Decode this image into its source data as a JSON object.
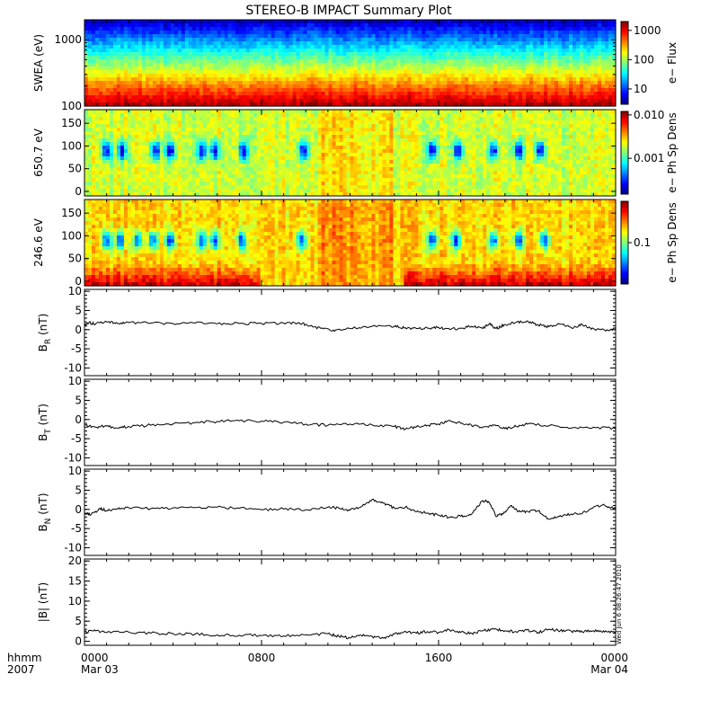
{
  "chart_data": {
    "type": "line",
    "title": "STEREO-B IMPACT Summary Plot",
    "x_labels": {
      "row1": [
        "0000",
        "0800",
        "1600",
        "0000"
      ],
      "row2": [
        "Mar 03",
        "Mar 04"
      ]
    },
    "x_prefix": {
      "row1": "hhmm",
      "row2": "2007"
    },
    "timestamp": "Wed Jun 6 08:26:47 2010",
    "panels": [
      {
        "id": "swea",
        "type": "heatmap",
        "ylabel": "SWEA (eV)",
        "yscale": "log",
        "ylim": [
          100,
          2000
        ],
        "yticks": [
          {
            "v": 100,
            "label": "100"
          },
          {
            "v": 1000,
            "label": "1000"
          }
        ],
        "colorbar": {
          "label": "e− Flux",
          "scale": "log",
          "range": [
            3,
            2000
          ],
          "ticks": [
            {
              "v": 10,
              "label": "10"
            },
            {
              "v": 100,
              "label": "100"
            },
            {
              "v": 1000,
              "label": "1000"
            }
          ]
        }
      },
      {
        "id": "pad650",
        "type": "heatmap",
        "ylabel": "650.7 eV",
        "ylim": [
          -10,
          180
        ],
        "yticks": [
          {
            "v": 0,
            "label": "0"
          },
          {
            "v": 50,
            "label": "50"
          },
          {
            "v": 100,
            "label": "100"
          },
          {
            "v": 150,
            "label": "150"
          }
        ],
        "colorbar": {
          "label": "e− Ph Sp Dens",
          "scale": "log",
          "range": [
            0.00015,
            0.012
          ],
          "ticks": [
            {
              "v": 0.001,
              "label": "0.001"
            },
            {
              "v": 0.01,
              "label": "0.010"
            }
          ]
        },
        "minima_hours": [
          1.0,
          1.7,
          3.2,
          3.9,
          5.3,
          5.9,
          7.2,
          9.9,
          15.7,
          16.9,
          18.5,
          19.6,
          20.6
        ]
      },
      {
        "id": "pad246",
        "type": "heatmap",
        "ylabel": "246.6 eV",
        "ylim": [
          -10,
          180
        ],
        "yticks": [
          {
            "v": 0,
            "label": "0"
          },
          {
            "v": 50,
            "label": "50"
          },
          {
            "v": 100,
            "label": "100"
          },
          {
            "v": 150,
            "label": "150"
          }
        ],
        "colorbar": {
          "label": "e− Ph Sp Dens",
          "scale": "log",
          "range": [
            0.02,
            0.5
          ],
          "ticks": [
            {
              "v": 0.1,
              "label": "0.1"
            }
          ]
        },
        "minima_hours": [
          1.0,
          1.6,
          2.4,
          3.1,
          3.9,
          5.3,
          5.9,
          7.1,
          9.8,
          15.7,
          16.8,
          18.5,
          19.6,
          20.8
        ]
      },
      {
        "id": "br",
        "type": "line",
        "ylabel": "B",
        "ylabel_sub": "R",
        "ylabel_unit": " (nT)",
        "ylim": [
          -12,
          10.5
        ],
        "yticks": [
          -10,
          -5,
          0,
          5,
          10
        ],
        "x": [
          0,
          0.2,
          0.5,
          1,
          1.5,
          2,
          3,
          4,
          5,
          6,
          7,
          8,
          9,
          9.7,
          10.2,
          10.8,
          11.3,
          12,
          13,
          14,
          14.5,
          15,
          15.5,
          16,
          16.5,
          17,
          17.5,
          18,
          18.3,
          18.6,
          19,
          19.5,
          20,
          20.5,
          21,
          21.5,
          22,
          22.5,
          23,
          23.5,
          24
        ],
        "y": [
          1.0,
          1.8,
          1.5,
          2.0,
          1.6,
          1.8,
          1.7,
          1.6,
          1.7,
          1.5,
          1.6,
          1.6,
          1.7,
          1.8,
          1.0,
          0.2,
          -0.4,
          0.3,
          0.9,
          0.8,
          0.5,
          0.3,
          0.4,
          0.6,
          0.1,
          0.4,
          0.9,
          0.3,
          1.6,
          0.3,
          1.3,
          1.9,
          2.3,
          1.2,
          0.8,
          1.4,
          0.5,
          1.3,
          0.2,
          -0.1,
          0.2
        ]
      },
      {
        "id": "bt",
        "type": "line",
        "ylabel": "B",
        "ylabel_sub": "T",
        "ylabel_unit": " (nT)",
        "ylim": [
          -12,
          10.5
        ],
        "yticks": [
          -10,
          -5,
          0,
          5,
          10
        ],
        "x": [
          0,
          0.5,
          1,
          1.5,
          2,
          3,
          4,
          5,
          6,
          7,
          8,
          9,
          10,
          11,
          12,
          13,
          14,
          14.5,
          15,
          15.5,
          16,
          16.5,
          17,
          17.5,
          18,
          18.5,
          19,
          19.5,
          20,
          21,
          22,
          23,
          24
        ],
        "y": [
          -1.5,
          -2.0,
          -1.7,
          -2.2,
          -1.8,
          -1.5,
          -1.2,
          -0.8,
          -0.5,
          -0.3,
          -0.4,
          -0.7,
          -1.2,
          -1.5,
          -1.2,
          -1.4,
          -1.8,
          -2.5,
          -1.9,
          -1.5,
          -1.2,
          -0.2,
          -1.0,
          -1.6,
          -2.0,
          -1.5,
          -2.4,
          -1.8,
          -1.2,
          -1.6,
          -2.2,
          -2.0,
          -2.4
        ]
      },
      {
        "id": "bn",
        "type": "line",
        "ylabel": "B",
        "ylabel_sub": "N",
        "ylabel_unit": " (nT)",
        "ylim": [
          -12,
          10.5
        ],
        "yticks": [
          -10,
          -5,
          0,
          5,
          10
        ],
        "x": [
          0,
          0.3,
          0.7,
          1,
          1.5,
          2,
          3,
          4,
          5,
          6,
          7,
          8,
          9,
          10,
          11,
          11.5,
          12,
          12.5,
          13,
          13.5,
          14,
          14.5,
          15,
          15.5,
          16,
          16.5,
          17,
          17.5,
          18,
          18.3,
          18.6,
          19,
          19.3,
          19.6,
          20,
          20.5,
          21,
          21.5,
          22,
          22.5,
          23,
          23.5,
          24
        ],
        "y": [
          -1.0,
          -1.3,
          0.2,
          -0.3,
          0.1,
          0.4,
          0.2,
          0.4,
          0.5,
          0.6,
          0.3,
          -0.1,
          0.1,
          -0.1,
          0.6,
          0.3,
          -0.2,
          0.7,
          2.6,
          1.6,
          0.4,
          0.6,
          -0.6,
          -1.0,
          -1.5,
          -2.0,
          -1.8,
          -1.2,
          2.3,
          1.8,
          -1.8,
          -0.8,
          1.0,
          -0.6,
          -0.5,
          -0.4,
          -2.6,
          -1.6,
          -1.2,
          -1.0,
          0.6,
          1.1,
          0.1
        ]
      },
      {
        "id": "bmag",
        "type": "line",
        "ylabel": "|B| (nT)",
        "ylim": [
          -1,
          20.5
        ],
        "yticks": [
          0,
          5,
          10,
          15,
          20
        ],
        "x": [
          0,
          0.5,
          1,
          2,
          3,
          4,
          5,
          6,
          7,
          8,
          9,
          10,
          11,
          11.5,
          12,
          12.5,
          13,
          13.5,
          14,
          14.5,
          15,
          15.5,
          16,
          16.5,
          17,
          17.5,
          18,
          18.5,
          19,
          19.5,
          20,
          20.5,
          21,
          21.5,
          22,
          22.5,
          23,
          23.5,
          24
        ],
        "y": [
          2.3,
          2.6,
          2.2,
          2.3,
          2.0,
          1.9,
          1.8,
          1.6,
          1.5,
          1.4,
          1.3,
          1.6,
          1.9,
          1.2,
          0.8,
          1.5,
          1.2,
          0.8,
          1.8,
          2.5,
          2.0,
          2.4,
          2.2,
          2.8,
          2.2,
          2.0,
          2.6,
          3.0,
          2.6,
          2.4,
          2.8,
          2.2,
          3.0,
          2.6,
          2.5,
          2.3,
          2.6,
          2.3,
          2.4
        ]
      }
    ]
  }
}
